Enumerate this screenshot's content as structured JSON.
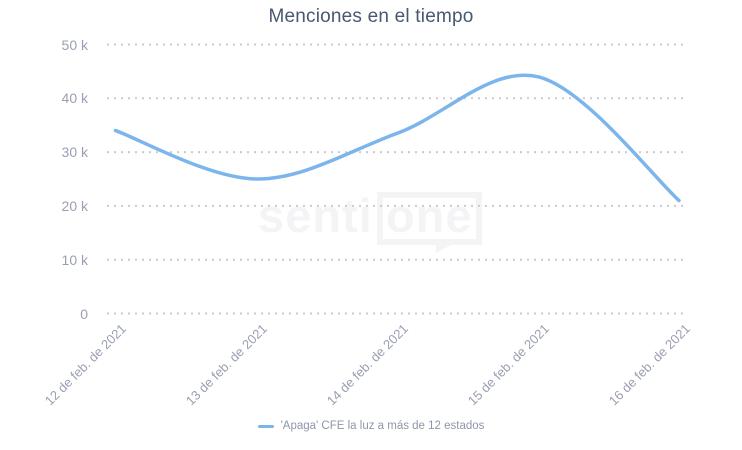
{
  "title": "Menciones en el tiempo",
  "watermark": {
    "text": "senti",
    "boxed_text": "one"
  },
  "legend": {
    "label": "'Apaga' CFE la luz a más de 12 estados"
  },
  "chart_data": {
    "type": "line",
    "title": "Menciones en el tiempo",
    "categories": [
      "12 de feb. de 2021",
      "13 de feb. de 2021",
      "14 de feb. de 2021",
      "15 de feb. de 2021",
      "16 de feb. de 2021"
    ],
    "series": [
      {
        "name": "'Apaga' CFE la luz a más de 12 estados",
        "values": [
          34000,
          25000,
          33500,
          44000,
          21000
        ],
        "color": "#7cb5ec",
        "style": "smooth-spline"
      }
    ],
    "xlabel": "",
    "ylabel": "",
    "ylim": [
      0,
      50000
    ],
    "yticks": {
      "values": [
        0,
        10000,
        20000,
        30000,
        40000,
        50000
      ],
      "labels": [
        "0",
        "10 k",
        "20 k",
        "30 k",
        "40 k",
        "50 k"
      ]
    },
    "grid": "horizontal-dotted",
    "legend_position": "bottom-center"
  },
  "colors": {
    "line": "#7cb5ec",
    "title_text": "#47586f",
    "axis_label_text": "#9aa0b2",
    "legend_text": "#8f96a8",
    "gridline_dot": "#cbcbcb",
    "watermark": "#f4f4f6",
    "background": "#ffffff"
  }
}
